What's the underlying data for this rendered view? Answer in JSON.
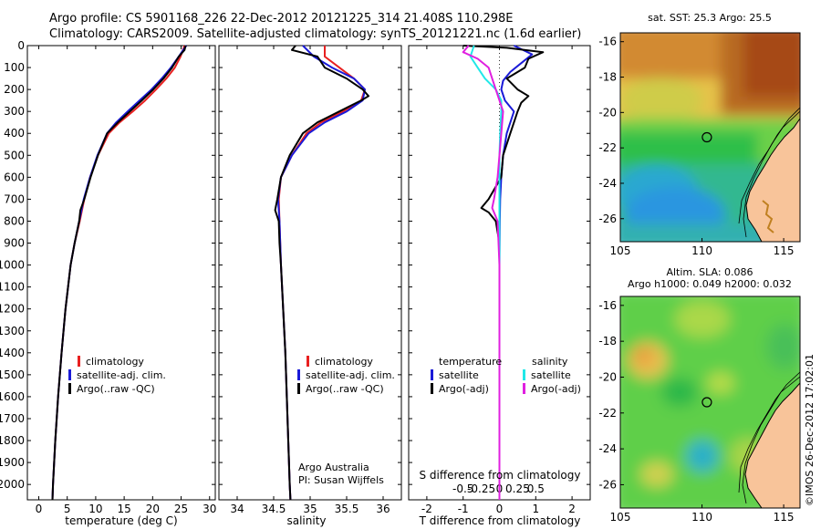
{
  "header": {
    "line1": "Argo profile: CS 5901168_226 22-Dec-2012 20121225_314 21.408S 110.298E",
    "line2": "Climatology: CARS2009. Satellite-adjusted climatology: synTS_20121221.nc (1.6d earlier)"
  },
  "colors": {
    "climatology": "#e82020",
    "satellite": "#1a1ad8",
    "argo": "#000000",
    "sal_satellite": "#20e8e8",
    "sal_argo": "#e020e0"
  },
  "chart_data": [
    {
      "type": "line",
      "xlabel": "temperature (deg C)",
      "ylabel": "",
      "xlim": [
        -2,
        31
      ],
      "ylim": [
        2070,
        0
      ],
      "xticks": [
        0,
        5,
        10,
        15,
        20,
        25,
        30
      ],
      "yticks": [
        0,
        100,
        200,
        300,
        400,
        500,
        600,
        700,
        800,
        900,
        1000,
        1100,
        1200,
        1300,
        1400,
        1500,
        1600,
        1700,
        1800,
        1900,
        2000
      ],
      "legend": {
        "placement": "lower-center",
        "entries": [
          "climatology",
          "satellite-adj. clim.",
          "Argo(..raw -QC)"
        ]
      },
      "series": [
        {
          "name": "climatology",
          "depth": [
            0,
            50,
            100,
            150,
            200,
            250,
            300,
            350,
            400,
            500,
            600,
            700,
            750,
            800,
            900,
            1000,
            1200,
            1400,
            1600,
            1800,
            2000,
            2070
          ],
          "values": [
            25.6,
            24.9,
            23.9,
            22.4,
            20.6,
            18.7,
            16.5,
            14.2,
            12.3,
            10.4,
            9.0,
            8.0,
            7.6,
            7.2,
            6.3,
            5.6,
            4.7,
            4.0,
            3.4,
            2.9,
            2.5,
            2.4
          ]
        },
        {
          "name": "satellite-adj. clim.",
          "depth": [
            0,
            50,
            100,
            150,
            200,
            250,
            300,
            350,
            400,
            500,
            600,
            700,
            750,
            800,
            900,
            1000,
            1200,
            1400,
            1600,
            1800,
            2000,
            2070
          ],
          "values": [
            25.9,
            24.6,
            23.2,
            21.6,
            19.8,
            17.7,
            15.6,
            13.6,
            12.0,
            10.3,
            9.0,
            7.9,
            7.5,
            7.1,
            6.3,
            5.6,
            4.7,
            4.0,
            3.4,
            2.9,
            2.5,
            2.4
          ]
        },
        {
          "name": "Argo(..raw -QC)",
          "depth": [
            0,
            20,
            50,
            100,
            150,
            200,
            250,
            300,
            350,
            400,
            500,
            600,
            700,
            750,
            800,
            900,
            1000,
            1200,
            1400,
            1600,
            1800,
            2000,
            2070
          ],
          "values": [
            25.8,
            25.6,
            24.6,
            23.4,
            21.9,
            20.1,
            18.1,
            16.0,
            13.9,
            12.0,
            10.4,
            9.1,
            8.0,
            7.3,
            7.1,
            6.3,
            5.6,
            4.7,
            4.0,
            3.4,
            2.9,
            2.5,
            2.4
          ]
        }
      ]
    },
    {
      "type": "line",
      "xlabel": "salinity",
      "ylabel": "",
      "xlim": [
        33.75,
        36.25
      ],
      "ylim": [
        2070,
        0
      ],
      "xticks": [
        34,
        34.5,
        35,
        35.5,
        36
      ],
      "legend": {
        "placement": "lower-center",
        "entries": [
          "climatology",
          "satellite-adj. clim.",
          "Argo(..raw -QC)"
        ]
      },
      "annotation": [
        "Argo Australia",
        "PI: Susan Wijffels"
      ],
      "series": [
        {
          "name": "climatology",
          "depth": [
            0,
            50,
            100,
            150,
            200,
            250,
            300,
            350,
            400,
            500,
            600,
            700,
            800,
            1000,
            1200,
            1400,
            1600,
            1800,
            2000,
            2070
          ],
          "values": [
            35.2,
            35.2,
            35.4,
            35.6,
            35.75,
            35.7,
            35.45,
            35.15,
            34.95,
            34.75,
            34.6,
            34.57,
            34.58,
            34.6,
            34.63,
            34.66,
            34.68,
            34.7,
            34.72,
            34.73
          ]
        },
        {
          "name": "satellite-adj. clim.",
          "depth": [
            0,
            50,
            100,
            150,
            200,
            250,
            300,
            350,
            400,
            500,
            600,
            700,
            800,
            1000,
            1200,
            1400,
            1600,
            1800,
            2000,
            2070
          ],
          "values": [
            34.9,
            35.05,
            35.3,
            35.6,
            35.75,
            35.72,
            35.5,
            35.2,
            34.98,
            34.75,
            34.6,
            34.56,
            34.58,
            34.6,
            34.63,
            34.66,
            34.68,
            34.7,
            34.72,
            34.73
          ]
        },
        {
          "name": "Argo(..raw -QC)",
          "depth": [
            0,
            20,
            50,
            100,
            150,
            200,
            230,
            250,
            300,
            350,
            400,
            500,
            600,
            700,
            750,
            800,
            900,
            1000,
            1200,
            1400,
            1600,
            1800,
            2000,
            2070
          ],
          "values": [
            34.8,
            34.75,
            35.1,
            35.2,
            35.5,
            35.72,
            35.8,
            35.7,
            35.4,
            35.1,
            34.9,
            34.72,
            34.6,
            34.55,
            34.52,
            34.57,
            34.58,
            34.6,
            34.63,
            34.66,
            34.68,
            34.7,
            34.72,
            34.73
          ]
        }
      ]
    },
    {
      "type": "line",
      "xlabel": "T difference from climatology",
      "xlabel_top": "S difference from climatology",
      "ylabel": "",
      "xlim": [
        -2.5,
        2.5
      ],
      "ylim": [
        2070,
        0
      ],
      "xticks": [
        -2,
        -1,
        0,
        1,
        2
      ],
      "xticks_top": [
        "-0.5",
        "-0.25",
        "0",
        "0.25",
        "0.5"
      ],
      "legend": {
        "placement": "lower-center",
        "headers": [
          "temperature",
          "salinity"
        ],
        "entries": [
          "satellite",
          "Argo(-adj)",
          "satellite",
          "Argo(-adj)"
        ]
      },
      "series": [
        {
          "name": "satellite",
          "group": "temperature",
          "depth": [
            0,
            40,
            80,
            120,
            160,
            200,
            250,
            300,
            400,
            500,
            600,
            700,
            800,
            1000,
            1500,
            2000,
            2070
          ],
          "values": [
            0.4,
            0.9,
            0.6,
            0.3,
            0.1,
            0.05,
            0.15,
            0.4,
            0.2,
            0.1,
            0.05,
            0.02,
            0.01,
            0.0,
            0.0,
            0.0,
            0.0
          ]
        },
        {
          "name": "Argo(-adj)",
          "group": "temperature",
          "depth": [
            0,
            10,
            30,
            60,
            100,
            150,
            200,
            230,
            260,
            300,
            400,
            500,
            600,
            700,
            740,
            760,
            800,
            900,
            1000,
            1500,
            2000,
            2070
          ],
          "values": [
            -1.0,
            0.2,
            1.2,
            0.8,
            0.7,
            0.2,
            0.5,
            0.8,
            0.6,
            0.5,
            0.3,
            0.1,
            0.05,
            -0.3,
            -0.5,
            -0.3,
            -0.1,
            0.0,
            0.0,
            0.0,
            0.0,
            0.0
          ]
        },
        {
          "name": "satellite",
          "group": "salinity",
          "depth": [
            0,
            50,
            100,
            150,
            200,
            250,
            300,
            400,
            500,
            600,
            700,
            800,
            1000,
            1500,
            2000,
            2070
          ],
          "values": [
            -0.7,
            -0.8,
            -0.6,
            -0.4,
            -0.1,
            0.05,
            0.05,
            0.02,
            0.0,
            0.0,
            0.0,
            0.0,
            0.0,
            0.0,
            0.0,
            0.0
          ]
        },
        {
          "name": "Argo(-adj)",
          "group": "salinity",
          "depth": [
            0,
            30,
            60,
            100,
            150,
            200,
            250,
            300,
            400,
            500,
            600,
            700,
            740,
            760,
            800,
            1000,
            1500,
            2000,
            2070
          ],
          "values": [
            -0.85,
            -1.0,
            -0.6,
            -0.3,
            -0.2,
            -0.1,
            0.0,
            0.1,
            0.05,
            0.0,
            -0.05,
            -0.15,
            -0.2,
            -0.15,
            -0.05,
            0.0,
            0.0,
            0.0,
            0.0
          ]
        }
      ]
    }
  ],
  "maps": [
    {
      "title": [
        "sat. SST: 25.3 Argo: 25.5"
      ],
      "xticks": [
        105,
        110,
        115
      ],
      "yticks": [
        -16,
        -18,
        -20,
        -22,
        -24,
        -26
      ],
      "xlim": [
        105,
        116
      ],
      "ylim": [
        -27.3,
        -15.5
      ],
      "marker": {
        "lon": 110.3,
        "lat": -21.4
      }
    },
    {
      "title": [
        "Altim. SLA: 0.086",
        "Argo h1000: 0.049 h2000: 0.032"
      ],
      "xticks": [
        105,
        110,
        115
      ],
      "yticks": [
        -16,
        -18,
        -20,
        -22,
        -24,
        -26
      ],
      "xlim": [
        105,
        116
      ],
      "ylim": [
        -27.3,
        -15.5
      ],
      "marker": {
        "lon": 110.3,
        "lat": -21.4
      }
    }
  ],
  "watermark": "©IMOS 26-Dec-2012 17:02:01"
}
